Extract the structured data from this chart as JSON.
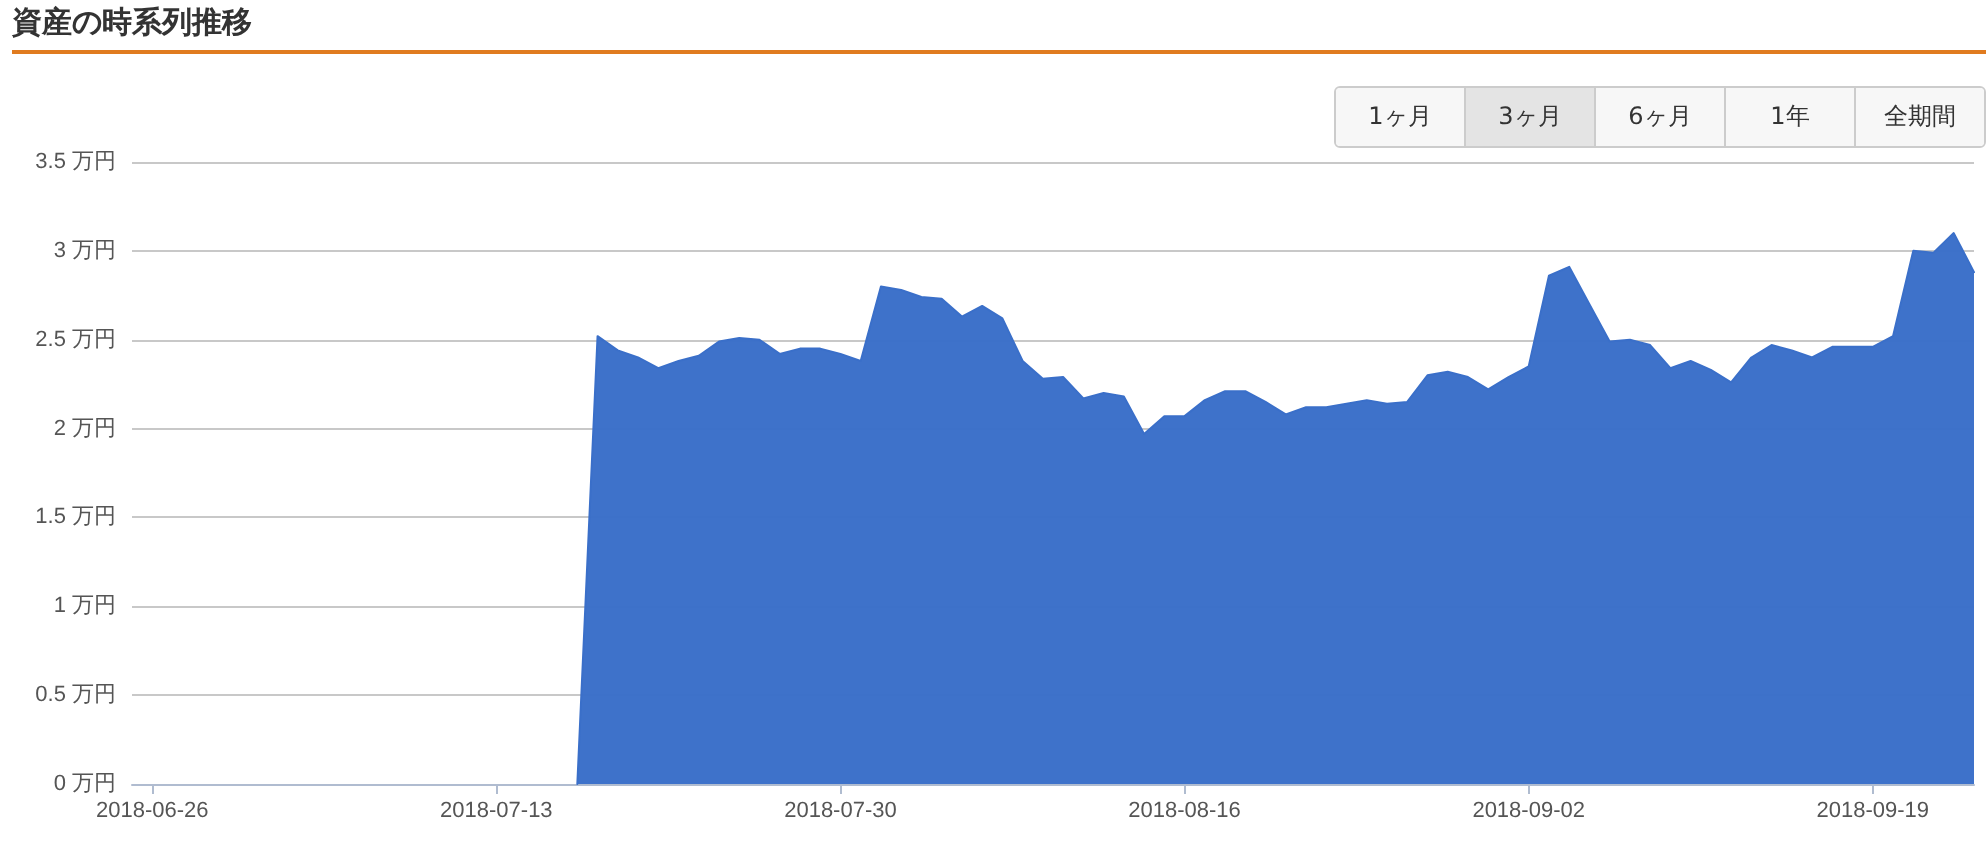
{
  "chart_data": {
    "type": "area",
    "title": "資産の時系列推移",
    "annotations": [
      "1ヶ月",
      "3ヶ月",
      "6ヶ月",
      "1年",
      "全期間"
    ],
    "x": [
      "2018-07-17",
      "2018-07-18",
      "2018-07-19",
      "2018-07-20",
      "2018-07-21",
      "2018-07-22",
      "2018-07-23",
      "2018-07-24",
      "2018-07-25",
      "2018-07-26",
      "2018-07-27",
      "2018-07-28",
      "2018-07-29",
      "2018-07-30",
      "2018-07-31",
      "2018-08-01",
      "2018-08-02",
      "2018-08-03",
      "2018-08-04",
      "2018-08-05",
      "2018-08-06",
      "2018-08-07",
      "2018-08-08",
      "2018-08-09",
      "2018-08-10",
      "2018-08-11",
      "2018-08-12",
      "2018-08-13",
      "2018-08-14",
      "2018-08-15",
      "2018-08-16",
      "2018-08-17",
      "2018-08-18",
      "2018-08-19",
      "2018-08-20",
      "2018-08-21",
      "2018-08-22",
      "2018-08-23",
      "2018-08-24",
      "2018-08-25",
      "2018-08-26",
      "2018-08-27",
      "2018-08-28",
      "2018-08-29",
      "2018-08-30",
      "2018-08-31",
      "2018-09-01",
      "2018-09-02",
      "2018-09-03",
      "2018-09-04",
      "2018-09-05",
      "2018-09-06",
      "2018-09-07",
      "2018-09-08",
      "2018-09-09",
      "2018-09-10",
      "2018-09-11",
      "2018-09-12",
      "2018-09-13",
      "2018-09-14",
      "2018-09-15",
      "2018-09-16",
      "2018-09-17",
      "2018-09-18",
      "2018-09-19",
      "2018-09-20",
      "2018-09-21",
      "2018-09-22",
      "2018-09-23",
      "2018-09-24"
    ],
    "series": [
      {
        "color": "#3a6fc9",
        "values": [
          0,
          2.52,
          2.44,
          2.4,
          2.34,
          2.38,
          2.41,
          2.49,
          2.51,
          2.5,
          2.42,
          2.45,
          2.45,
          2.42,
          2.38,
          2.8,
          2.78,
          2.74,
          2.73,
          2.63,
          2.69,
          2.62,
          2.38,
          2.28,
          2.29,
          2.17,
          2.2,
          2.18,
          1.97,
          2.07,
          2.07,
          2.16,
          2.21,
          2.21,
          2.15,
          2.08,
          2.12,
          2.12,
          2.14,
          2.16,
          2.14,
          2.15,
          2.3,
          2.32,
          2.29,
          2.22,
          2.29,
          2.35,
          2.86,
          2.91,
          2.7,
          2.49,
          2.5,
          2.47,
          2.34,
          2.38,
          2.33,
          2.26,
          2.4,
          2.47,
          2.44,
          2.4,
          2.46,
          2.46,
          2.46,
          2.52,
          3.0,
          2.99,
          3.1,
          2.88
        ]
      }
    ],
    "xlim": [
      "2018-06-25",
      "2018-09-24"
    ],
    "xticks": [
      "2018-06-26",
      "2018-07-13",
      "2018-07-30",
      "2018-08-16",
      "2018-09-02",
      "2018-09-19"
    ],
    "ylim": [
      0,
      3.5
    ],
    "yticks": [
      {
        "value": 0,
        "label": "0 万円"
      },
      {
        "value": 0.5,
        "label": "0.5 万円"
      },
      {
        "value": 1,
        "label": "1 万円"
      },
      {
        "value": 1.5,
        "label": "1.5 万円"
      },
      {
        "value": 2,
        "label": "2 万円"
      },
      {
        "value": 2.5,
        "label": "2.5 万円"
      },
      {
        "value": 3,
        "label": "3 万円"
      },
      {
        "value": 3.5,
        "label": "3.5 万円"
      }
    ],
    "grid": "y",
    "marker": "none",
    "line_style": "solid"
  }
}
